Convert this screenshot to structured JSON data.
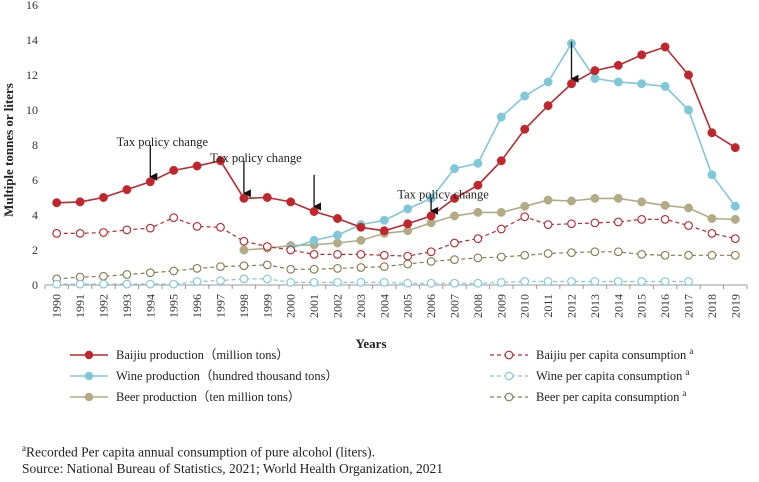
{
  "chart_data": {
    "type": "line",
    "xlabel": "Years",
    "ylabel": "Multiple tonnes or liters",
    "ylim": [
      0,
      16
    ],
    "yticks": [
      0,
      2,
      4,
      6,
      8,
      10,
      12,
      14,
      16
    ],
    "x": [
      "1990",
      "1991",
      "1992",
      "1993",
      "1994",
      "1995",
      "1996",
      "1997",
      "1998",
      "1999",
      "2000",
      "2001",
      "2002",
      "2003",
      "2004",
      "2005",
      "2006",
      "2007",
      "2008",
      "2009",
      "2010",
      "2011",
      "2012",
      "2013",
      "2014",
      "2015",
      "2016",
      "2017",
      "2018",
      "2019"
    ],
    "series": [
      {
        "name": "Baijiu production（million tons）",
        "sup": "",
        "color": "#c0262c",
        "dash": false,
        "marker": "filled",
        "values": [
          4.7,
          4.75,
          5.0,
          5.45,
          5.9,
          6.55,
          6.8,
          7.1,
          4.95,
          5.0,
          4.75,
          4.2,
          3.8,
          3.3,
          3.1,
          3.5,
          3.95,
          4.95,
          5.7,
          7.1,
          8.9,
          10.25,
          11.5,
          12.25,
          12.55,
          13.15,
          13.6,
          12.0,
          8.7,
          7.85
        ]
      },
      {
        "name": "Baijiu per capita  consumption",
        "sup": "a",
        "color": "#c0262c",
        "dash": true,
        "marker": "open",
        "values": [
          2.95,
          2.95,
          3.0,
          3.15,
          3.25,
          3.85,
          3.35,
          3.3,
          2.5,
          2.2,
          2.0,
          1.75,
          1.75,
          1.75,
          1.7,
          1.65,
          1.9,
          2.4,
          2.65,
          3.2,
          3.9,
          3.45,
          3.5,
          3.55,
          3.6,
          3.75,
          3.75,
          3.4,
          2.95,
          2.65
        ]
      },
      {
        "name": "Wine production（hundred thousand tons）",
        "sup": "",
        "color": "#7ec8da",
        "dash": false,
        "marker": "filled",
        "values": [
          null,
          null,
          null,
          null,
          null,
          null,
          null,
          null,
          null,
          null,
          2.1,
          2.55,
          2.85,
          3.45,
          3.7,
          4.35,
          4.95,
          6.65,
          6.95,
          9.6,
          10.8,
          11.6,
          13.8,
          11.8,
          11.6,
          11.5,
          11.35,
          10.0,
          6.3,
          4.5
        ]
      },
      {
        "name": "Wine per capita  consumption",
        "sup": "a",
        "color": "#7ec8da",
        "dash": true,
        "marker": "open",
        "values": [
          0.05,
          0.05,
          0.05,
          0.05,
          0.05,
          0.05,
          0.2,
          0.25,
          0.35,
          0.35,
          0.15,
          0.15,
          0.15,
          0.15,
          0.15,
          0.1,
          0.1,
          0.1,
          0.1,
          0.15,
          0.2,
          0.2,
          0.2,
          0.2,
          0.2,
          0.2,
          0.2,
          0.2,
          null,
          null
        ]
      },
      {
        "name": "Beer production（ten million tons）",
        "sup": "",
        "color": "#b3ab86",
        "dash": false,
        "marker": "filled",
        "values": [
          null,
          null,
          null,
          null,
          null,
          null,
          null,
          null,
          2.0,
          2.1,
          2.25,
          2.3,
          2.4,
          2.55,
          2.95,
          3.1,
          3.55,
          3.95,
          4.15,
          4.15,
          4.5,
          4.85,
          4.8,
          4.95,
          4.95,
          4.75,
          4.55,
          4.4,
          3.8,
          3.75
        ]
      },
      {
        "name": "Beer per capita  consumption",
        "sup": "a",
        "color": "#8c7a4f",
        "dash": true,
        "marker": "open",
        "values": [
          0.35,
          0.45,
          0.5,
          0.6,
          0.7,
          0.8,
          0.95,
          1.05,
          1.1,
          1.15,
          0.9,
          0.9,
          0.95,
          1.0,
          1.05,
          1.2,
          1.35,
          1.45,
          1.55,
          1.6,
          1.7,
          1.8,
          1.85,
          1.9,
          1.9,
          1.75,
          1.7,
          1.7,
          1.7,
          1.7
        ]
      }
    ],
    "annotations": [
      {
        "text": "Tax policy change",
        "x": "1994",
        "arrow_from": 8.0,
        "arrow_to": 5.9
      },
      {
        "text": "Tax policy change",
        "x": "1998",
        "arrow_from": 7.1,
        "arrow_to": 4.95
      },
      {
        "text": "",
        "x": "2001",
        "arrow_from": 6.3,
        "arrow_to": 4.2
      },
      {
        "text": "Tax policy change",
        "x": "2006",
        "arrow_from": 5.0,
        "arrow_to": 3.95
      },
      {
        "text": "",
        "x": "2012",
        "arrow_from": 13.9,
        "arrow_to": 11.5
      }
    ]
  },
  "footnote": {
    "marker": "a",
    "text": "Recorded Per capita annual consumption of pure alcohol (liters).",
    "source": "Source:  National Bureau of Statistics, 2021; World Health Organization, 2021"
  }
}
